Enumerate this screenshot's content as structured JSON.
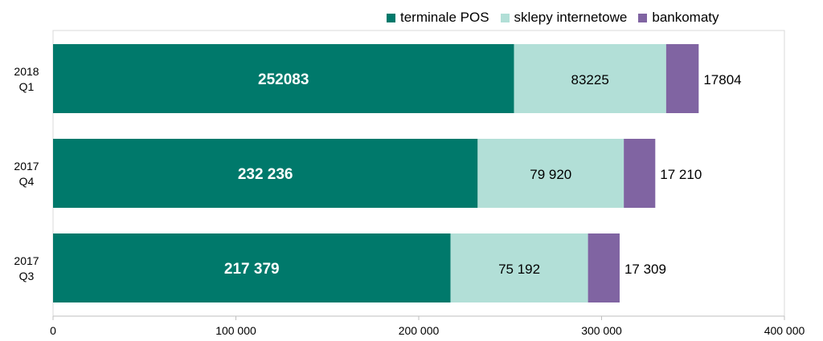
{
  "chart_data": {
    "type": "bar",
    "orientation": "horizontal",
    "stacked": true,
    "categories": [
      {
        "line1": "2018",
        "line2": "Q1"
      },
      {
        "line1": "2017",
        "line2": "Q4"
      },
      {
        "line1": "2017",
        "line2": "Q3"
      }
    ],
    "series": [
      {
        "name": "terminale POS",
        "color": "#00796b",
        "values": [
          252083,
          232236,
          217379
        ],
        "labels": [
          "252083",
          "232 236",
          "217 379"
        ],
        "label_color": "#ffffff",
        "label_bold": true
      },
      {
        "name": "sklepy internetowe",
        "color": "#b2dfd7",
        "values": [
          83225,
          79920,
          75192
        ],
        "labels": [
          "83225",
          "79 920",
          "75 192"
        ],
        "label_color": "#000000",
        "label_bold": false
      },
      {
        "name": "bankomaty",
        "color": "#8064a2",
        "values": [
          17804,
          17210,
          17309
        ],
        "labels": [
          "17804",
          "17 210",
          "17 309"
        ],
        "label_color": "#000000",
        "label_bold": false
      }
    ],
    "xlim": [
      0,
      400000
    ],
    "x_ticks": [
      0,
      100000,
      200000,
      300000,
      400000
    ],
    "x_tick_labels": [
      "0",
      "100 000",
      "200 000",
      "300 000",
      "400 000"
    ],
    "grid": false,
    "legend_position": "top-right",
    "title": "",
    "xlabel": "",
    "ylabel": ""
  }
}
